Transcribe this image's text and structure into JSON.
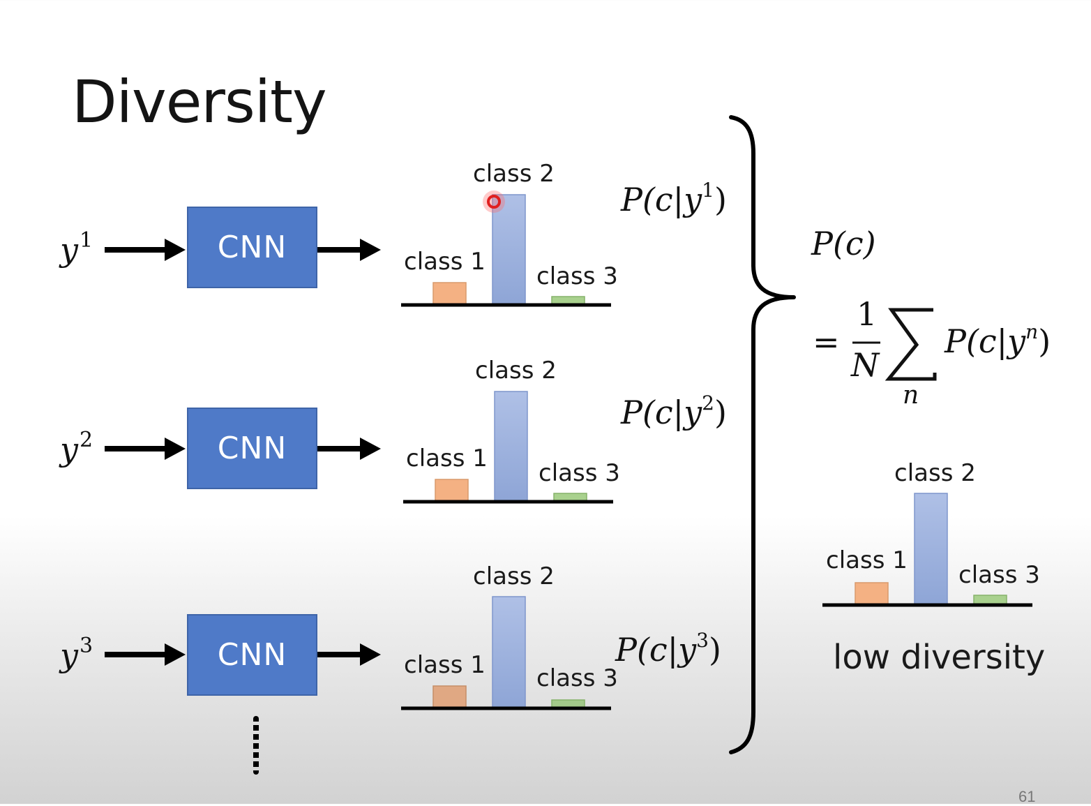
{
  "slide": {
    "title": "Diversity",
    "page_number": "61",
    "dots": "⋮"
  },
  "rows": [
    {
      "input_base": "y",
      "input_sup": "1",
      "model_label": "CNN",
      "dist": {
        "class1_label": "class 1",
        "class2_label": "class 2",
        "class3_label": "class 3"
      },
      "prob_base": "P(c|y",
      "prob_sup": "1",
      "prob_close": ")"
    },
    {
      "input_base": "y",
      "input_sup": "2",
      "model_label": "CNN",
      "dist": {
        "class1_label": "class 1",
        "class2_label": "class 2",
        "class3_label": "class 3"
      },
      "prob_base": "P(c|y",
      "prob_sup": "2",
      "prob_close": ")"
    },
    {
      "input_base": "y",
      "input_sup": "3",
      "model_label": "CNN",
      "dist": {
        "class1_label": "class 1",
        "class2_label": "class 2",
        "class3_label": "class 3"
      },
      "prob_base": "P(c|y",
      "prob_sup": "3",
      "prob_close": ")"
    }
  ],
  "aggregate": {
    "lhs": "P(c)",
    "equals": "=",
    "frac_num": "1",
    "frac_den": "N",
    "sum_symbol": "∑",
    "sum_index": "n",
    "term_base": "P(c|y",
    "term_sup": "n",
    "term_close": ")",
    "dist": {
      "class1_label": "class 1",
      "class2_label": "class 2",
      "class3_label": "class 3"
    },
    "caption": "low diversity"
  },
  "colors": {
    "cnn_fill": "#4f7ac8",
    "class1_bar": "#f4b183",
    "class2_bar": "#a8b9e0",
    "class3_bar": "#a9d18e",
    "pointer": "#e02020"
  }
}
